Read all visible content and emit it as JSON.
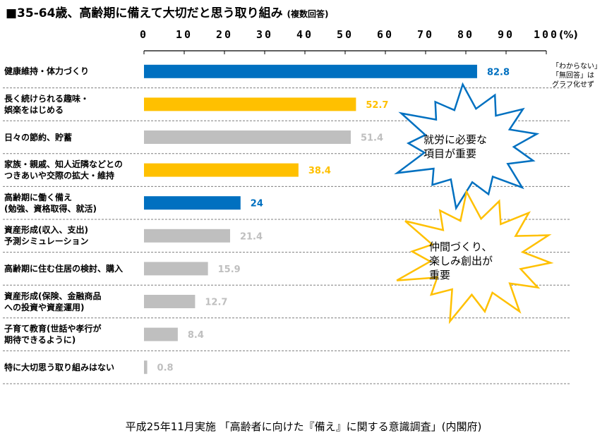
{
  "title": "■35-64歳、高齢期に備えて大切だと思う取り組み",
  "title_note": "(複数回答)",
  "chart_data": {
    "type": "bar",
    "orientation": "horizontal",
    "categories": [
      "健康維持・体力づくり",
      "長く続けられる趣味・\n娯楽をはじめる",
      "日々の節約、貯蓄",
      "家族・親戚、知人近隣などとの\nつきあいや交際の拡大・維持",
      "高齢期に働く備え\n(勉強、資格取得、就活)",
      "資産形成(収入、支出)\n予測シミュレーション",
      "高齢期に住む住居の検討、購入",
      "資産形成(保険、金融商品\nへの投資や資産運用)",
      "子育て教育(世話や孝行が\n期待できるように)",
      "特に大切思う取り組みはない"
    ],
    "values": [
      82.8,
      52.7,
      51.4,
      38.4,
      24,
      21.4,
      15.9,
      12.7,
      8.4,
      0.8
    ],
    "value_labels": [
      "82.8",
      "52.7",
      "51.4",
      "38.4",
      "24",
      "21.4",
      "15.9",
      "12.7",
      "8.4",
      "0.8"
    ],
    "bar_colors": [
      "#0070C0",
      "#FFC000",
      "#BFBFBF",
      "#FFC000",
      "#0070C0",
      "#BFBFBF",
      "#BFBFBF",
      "#BFBFBF",
      "#BFBFBF",
      "#BFBFBF"
    ],
    "label_colors": [
      "#0070C0",
      "#FFC000",
      "#BFBFBF",
      "#FFC000",
      "#0070C0",
      "#BFBFBF",
      "#BFBFBF",
      "#BFBFBF",
      "#BFBFBF",
      "#BFBFBF"
    ],
    "x_ticks": [
      "0",
      "10",
      "20",
      "30",
      "40",
      "50",
      "60",
      "70",
      "80",
      "90",
      "100"
    ],
    "x_unit": "(%)",
    "xlim": [
      0,
      100
    ],
    "xlabel": "",
    "ylabel": "",
    "legend": "none",
    "row_separators": "dashed"
  },
  "note": "「わからない」\n「無回答」は\nグラフ化せず",
  "callouts": [
    {
      "text": "就労に必要な\n項目が重要",
      "fill": "#ffffff",
      "stroke": "#0070C0"
    },
    {
      "text": "仲間づくり、\n楽しみ創出が\n重要",
      "fill": "#ffffff",
      "stroke": "#FFC000"
    }
  ],
  "source": "平成25年11月実施 「高齢者に向けた『備え』に関する意識調査」(内閣府)"
}
